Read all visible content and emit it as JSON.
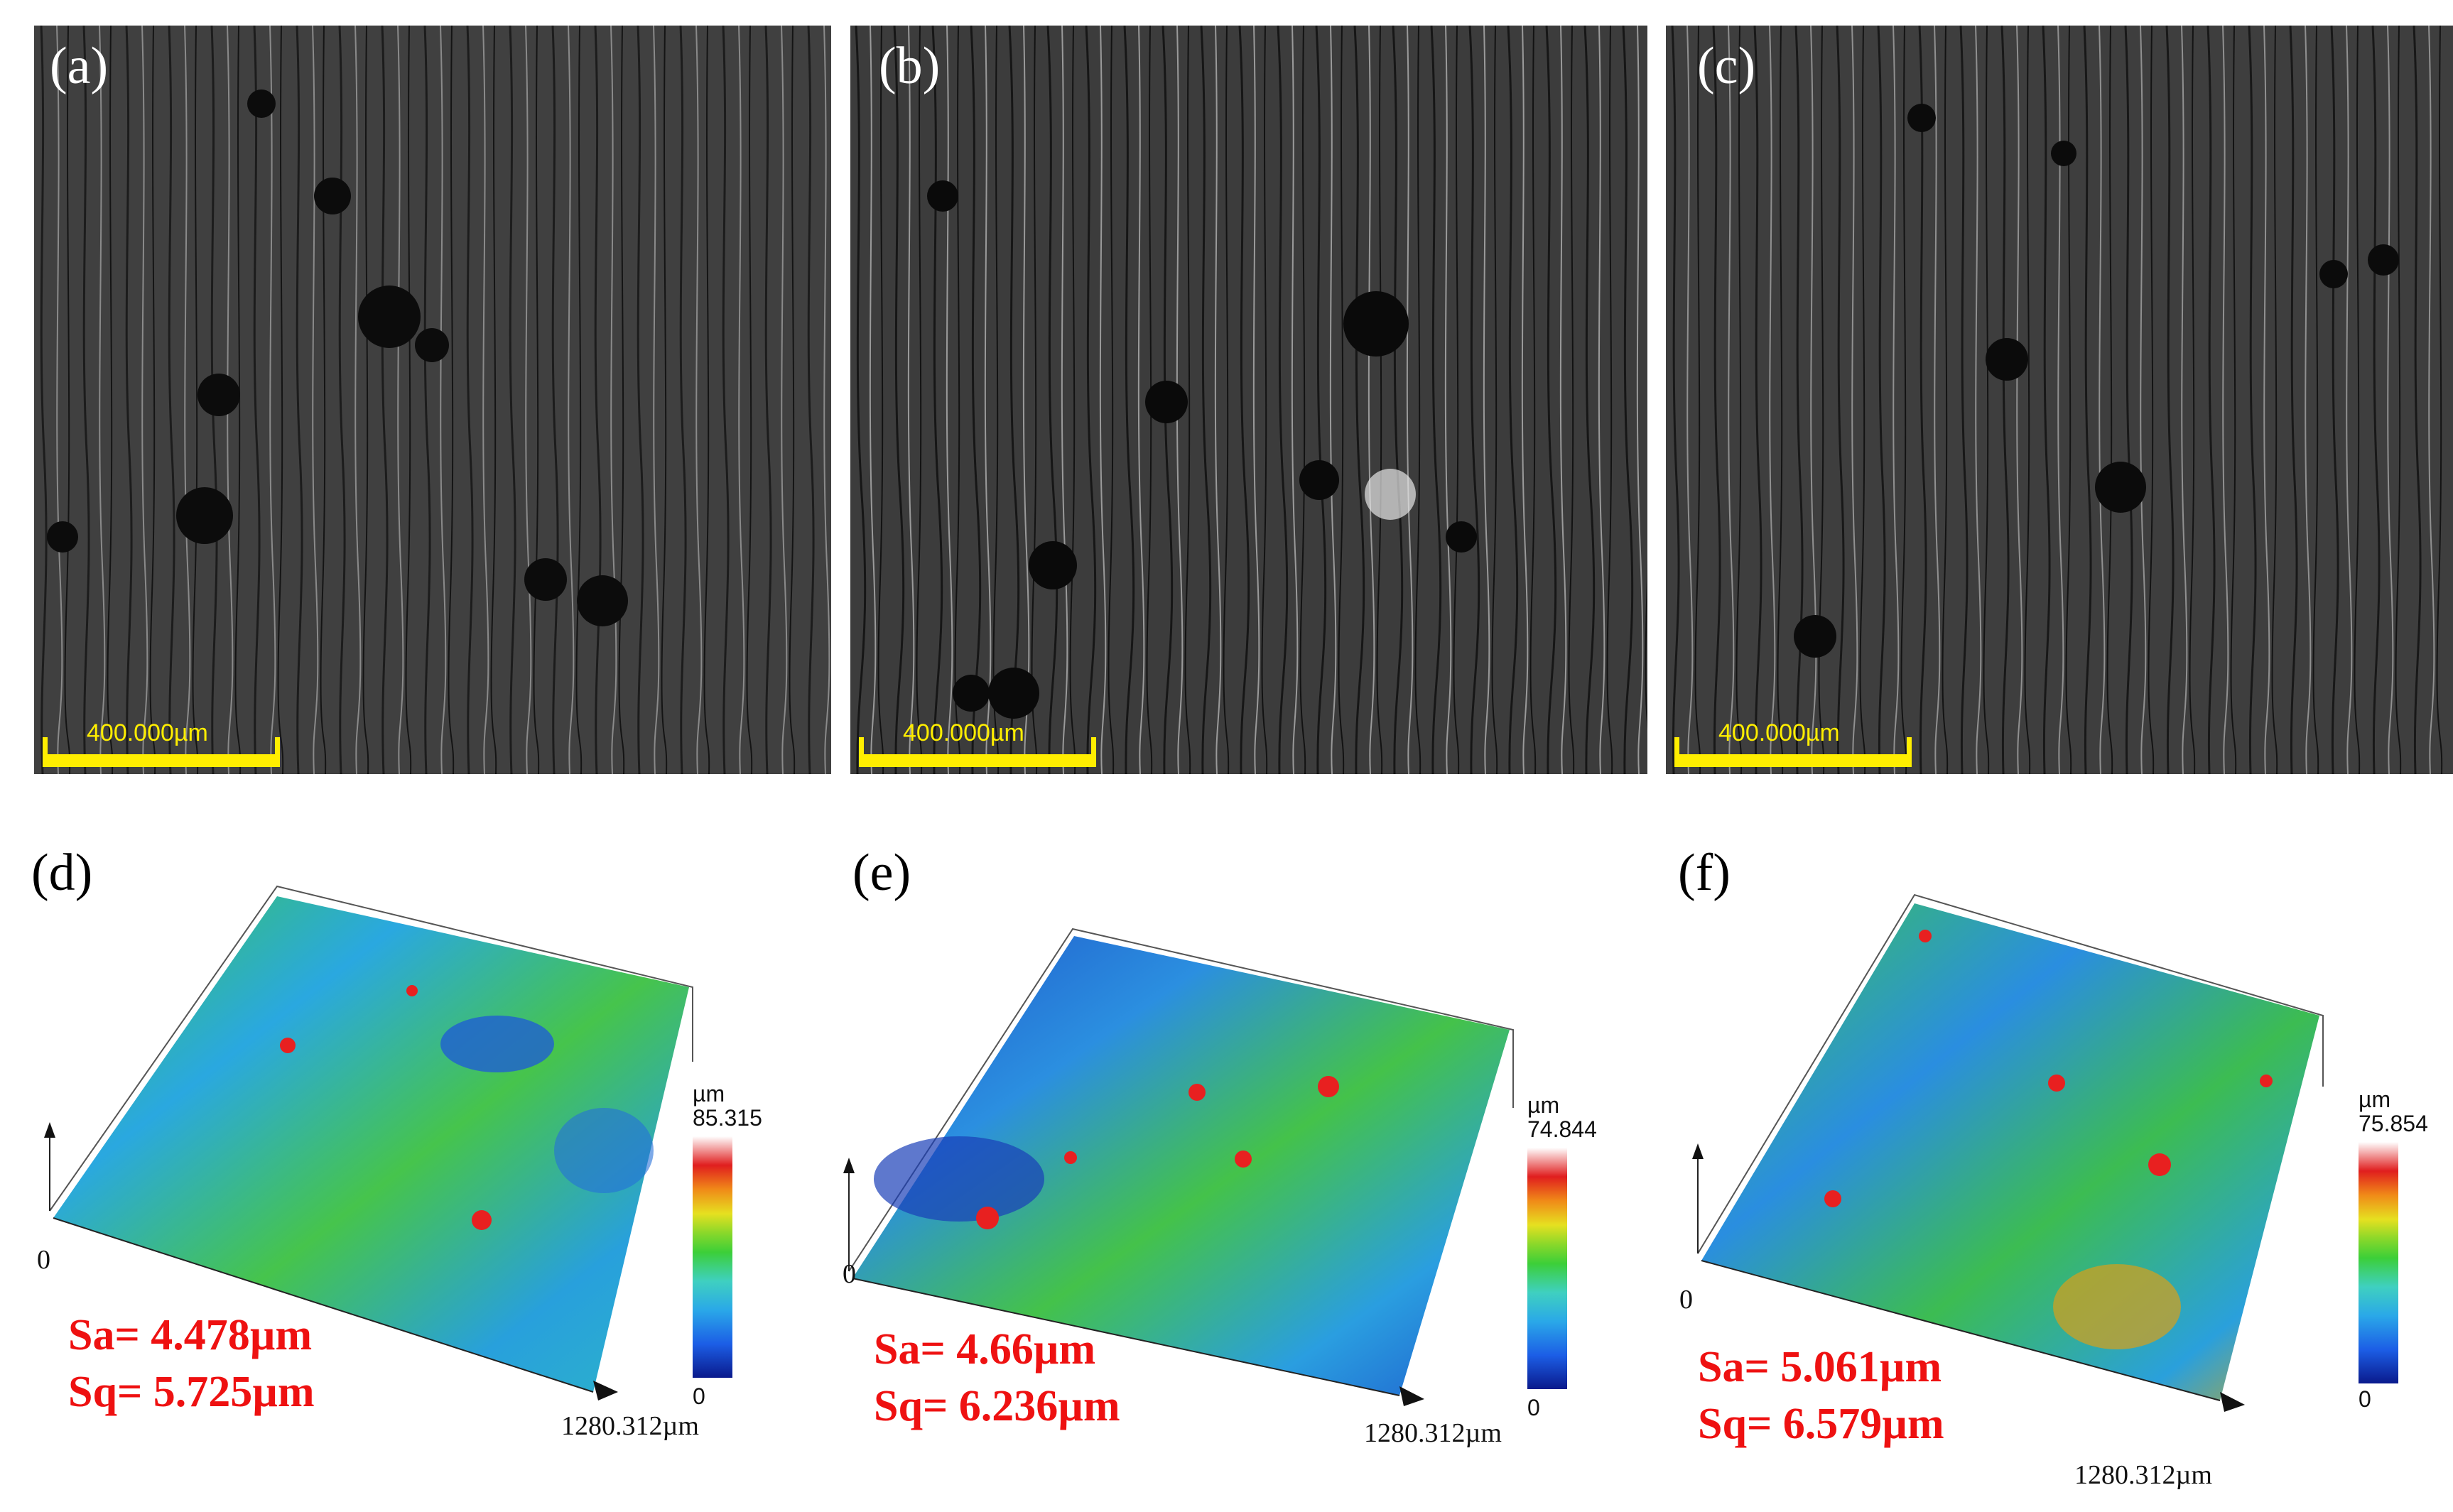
{
  "panels_top": [
    {
      "label": "(a)",
      "scale": "400.000µm"
    },
    {
      "label": "(b)",
      "scale": "400.000µm"
    },
    {
      "label": "(c)",
      "scale": "400.000µm"
    }
  ],
  "panels_bottom": [
    {
      "label": "(d)",
      "unit": "µm",
      "max": "85.315",
      "min": "0",
      "origin": "0",
      "xlabel": "1280.312µm",
      "sa": "Sa= 4.478µm",
      "sq": "Sq= 5.725µm"
    },
    {
      "label": "(e)",
      "unit": "µm",
      "max": "74.844",
      "min": "0",
      "origin": "0",
      "xlabel": "1280.312µm",
      "sa": "Sa= 4.66µm",
      "sq": "Sq= 6.236µm"
    },
    {
      "label": "(f)",
      "unit": "µm",
      "max": "75.854",
      "min": "0",
      "origin": "0",
      "xlabel": "1280.312µm",
      "sa": "Sa= 5.061µm",
      "sq": "Sq= 6.579µm"
    }
  ],
  "colors": {
    "scalebar": "#ffee00",
    "stat_text": "#ee1111"
  }
}
